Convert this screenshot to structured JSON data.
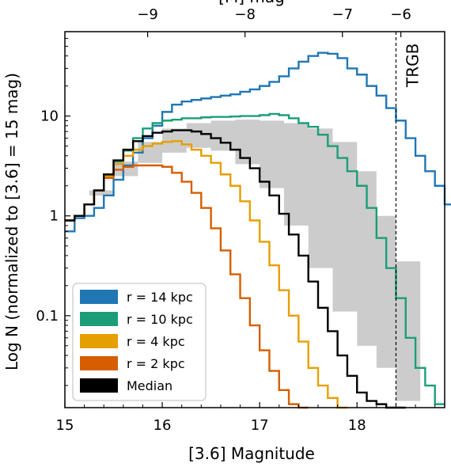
{
  "chart_data": {
    "type": "line",
    "drawstyle": "steps",
    "xlabel": "[3.6] Magnitude",
    "ylabel": "Log N (normalized to [3.6] = 15 mag)",
    "top_axis_label": "[M] mag",
    "xlim": [
      15.0,
      18.9
    ],
    "ylim": [
      0.012,
      70
    ],
    "y_scale": "log",
    "x_ticks": [
      15,
      16,
      17,
      18
    ],
    "y_ticks": [
      {
        "value": 0.1,
        "label": "0.1"
      },
      {
        "value": 1,
        "label": "1"
      },
      {
        "value": 10,
        "label": "10"
      }
    ],
    "top_ticks": [
      {
        "value": 15.85,
        "label": "−9"
      },
      {
        "value": 16.85,
        "label": "−8"
      },
      {
        "value": 17.85,
        "label": "−7"
      },
      {
        "value": 18.45,
        "label": "−6"
      }
    ],
    "vline": {
      "x": 18.4,
      "label": "TRGB"
    },
    "legend_position": "lower-left",
    "band": {
      "x": [
        15.0,
        15.25,
        15.5,
        15.75,
        16.0,
        16.25,
        16.5,
        16.75,
        17.0,
        17.25,
        17.5,
        17.75,
        18.0,
        18.2,
        18.4
      ],
      "lower": [
        0.95,
        1.6,
        2.5,
        3.4,
        4.3,
        4.8,
        4.5,
        3.3,
        1.9,
        0.8,
        0.3,
        0.11,
        0.05,
        0.03,
        0.014
      ],
      "upper": [
        0.95,
        1.8,
        3.5,
        5.5,
        7.5,
        8.5,
        9.0,
        9.2,
        9.0,
        8.5,
        7.5,
        5.5,
        2.8,
        1.0,
        0.35
      ]
    },
    "series": [
      {
        "name": "r = 14 kpc",
        "color": "#1f77b4",
        "x": [
          15.0,
          15.1,
          15.2,
          15.3,
          15.4,
          15.5,
          15.6,
          15.7,
          15.8,
          15.9,
          16.0,
          16.1,
          16.2,
          16.3,
          16.4,
          16.5,
          16.6,
          16.7,
          16.8,
          16.9,
          17.0,
          17.1,
          17.2,
          17.3,
          17.4,
          17.5,
          17.6,
          17.7,
          17.8,
          17.9,
          18.0,
          18.1,
          18.2,
          18.3,
          18.4,
          18.5,
          18.6,
          18.7,
          18.8,
          18.9
        ],
        "y": [
          0.7,
          0.95,
          1.0,
          1.2,
          1.6,
          2.3,
          3.2,
          4.3,
          6.0,
          8.0,
          11.0,
          13.0,
          14.0,
          14.5,
          15.0,
          15.5,
          16.0,
          16.5,
          17.5,
          18.5,
          20.0,
          22.0,
          25.0,
          30.0,
          35.0,
          40.0,
          43.0,
          42.0,
          38.0,
          30.0,
          26.0,
          20.0,
          16.0,
          12.0,
          9.0,
          6.0,
          4.0,
          2.8,
          2.0,
          1.3
        ]
      },
      {
        "name": "r = 10 kpc",
        "color": "#1b9e77",
        "x": [
          15.0,
          15.1,
          15.2,
          15.3,
          15.4,
          15.5,
          15.6,
          15.7,
          15.8,
          15.9,
          16.0,
          16.1,
          16.2,
          16.3,
          16.4,
          16.5,
          16.6,
          16.7,
          16.8,
          16.9,
          17.0,
          17.1,
          17.2,
          17.3,
          17.4,
          17.5,
          17.6,
          17.7,
          17.8,
          17.9,
          18.0,
          18.1,
          18.2,
          18.3,
          18.4,
          18.5,
          18.6,
          18.7,
          18.8
        ],
        "y": [
          0.9,
          1.0,
          1.3,
          1.8,
          2.5,
          3.5,
          4.5,
          6.0,
          7.5,
          8.5,
          9.0,
          9.2,
          9.5,
          9.5,
          9.7,
          9.8,
          9.8,
          9.9,
          10.0,
          10.0,
          10.2,
          10.5,
          10.2,
          9.5,
          8.5,
          7.8,
          6.5,
          5.0,
          3.8,
          2.8,
          2.0,
          1.2,
          0.6,
          0.3,
          0.15,
          0.06,
          0.03,
          0.02,
          0.013
        ]
      },
      {
        "name": "r = 4 kpc",
        "color": "#e69f00",
        "x": [
          15.0,
          15.1,
          15.2,
          15.3,
          15.4,
          15.5,
          15.6,
          15.7,
          15.8,
          15.9,
          16.0,
          16.1,
          16.2,
          16.3,
          16.4,
          16.5,
          16.6,
          16.7,
          16.8,
          16.9,
          17.0,
          17.1,
          17.2,
          17.3,
          17.4,
          17.5,
          17.6,
          17.7,
          17.8
        ],
        "y": [
          0.9,
          1.0,
          1.3,
          1.8,
          2.5,
          3.3,
          4.0,
          4.6,
          5.0,
          5.3,
          5.5,
          5.6,
          5.2,
          4.6,
          4.0,
          3.4,
          2.6,
          2.0,
          1.4,
          0.9,
          0.55,
          0.32,
          0.18,
          0.1,
          0.055,
          0.03,
          0.02,
          0.015,
          0.012
        ]
      },
      {
        "name": "r = 2 kpc",
        "color": "#d55e00",
        "x": [
          15.0,
          15.1,
          15.2,
          15.3,
          15.4,
          15.5,
          15.6,
          15.7,
          15.8,
          15.9,
          16.0,
          16.1,
          16.2,
          16.3,
          16.4,
          16.5,
          16.6,
          16.7,
          16.8,
          16.9,
          17.0,
          17.1,
          17.2,
          17.3,
          17.4
        ],
        "y": [
          0.9,
          1.0,
          1.3,
          1.8,
          2.4,
          2.9,
          3.1,
          3.2,
          3.2,
          3.2,
          3.1,
          2.7,
          2.2,
          1.7,
          1.2,
          0.75,
          0.45,
          0.26,
          0.15,
          0.08,
          0.045,
          0.028,
          0.018,
          0.013,
          0.012
        ]
      },
      {
        "name": "Median",
        "color": "#000000",
        "x": [
          15.0,
          15.1,
          15.2,
          15.3,
          15.4,
          15.5,
          15.6,
          15.7,
          15.8,
          15.9,
          16.0,
          16.1,
          16.2,
          16.3,
          16.4,
          16.5,
          16.6,
          16.7,
          16.8,
          16.9,
          17.0,
          17.1,
          17.2,
          17.3,
          17.4,
          17.5,
          17.6,
          17.7,
          17.8,
          17.9,
          18.0,
          18.1,
          18.2,
          18.3,
          18.4
        ],
        "y": [
          0.9,
          1.0,
          1.3,
          1.8,
          2.6,
          3.6,
          4.6,
          5.6,
          6.3,
          6.8,
          7.0,
          7.2,
          7.2,
          7.0,
          6.6,
          6.0,
          5.4,
          4.6,
          3.8,
          3.0,
          2.2,
          1.6,
          1.05,
          0.65,
          0.4,
          0.22,
          0.12,
          0.07,
          0.04,
          0.025,
          0.017,
          0.014,
          0.013,
          0.012,
          0.012
        ]
      }
    ]
  }
}
